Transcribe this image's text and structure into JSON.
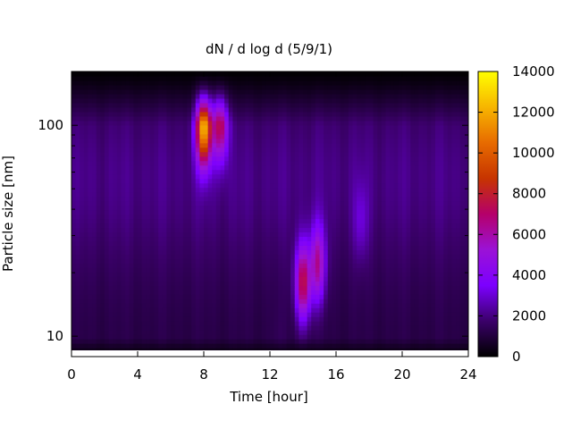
{
  "chart_data": {
    "type": "heatmap",
    "title": "dN / d log d (5/9/1)",
    "xlabel": "Time [hour]",
    "ylabel": "Particle size [nm]",
    "x_range": [
      0,
      24
    ],
    "x_ticks": [
      0,
      4,
      8,
      12,
      16,
      20,
      24
    ],
    "y_scale": "log",
    "y_range": [
      8,
      180
    ],
    "y_ticks": [
      10,
      100
    ],
    "colorbar_range": [
      0,
      14000
    ],
    "colorbar_ticks": [
      0,
      2000,
      4000,
      6000,
      8000,
      10000,
      12000,
      14000
    ],
    "colormap": "gnuplot",
    "color_stops": [
      "#000000",
      "#3b006a",
      "#7c00ff",
      "#9b12d6",
      "#b5006a",
      "#c73400",
      "#e76b00",
      "#f7b500",
      "#ffff00"
    ],
    "missing_data_color": "#ffffff",
    "background_level": 2300,
    "features": [
      {
        "time": 8.0,
        "size_nm": 100,
        "value": 13000
      },
      {
        "time": 9.0,
        "size_nm": 105,
        "value": 8200
      },
      {
        "time": 14.0,
        "size_nm": 18,
        "value": 8500
      },
      {
        "time": 14.9,
        "size_nm": 22,
        "value": 7000
      },
      {
        "time": 17.5,
        "size_nm": 35,
        "value": 3500
      },
      {
        "time": 12.5,
        "size_nm": 9.5,
        "value": 2500
      }
    ]
  }
}
